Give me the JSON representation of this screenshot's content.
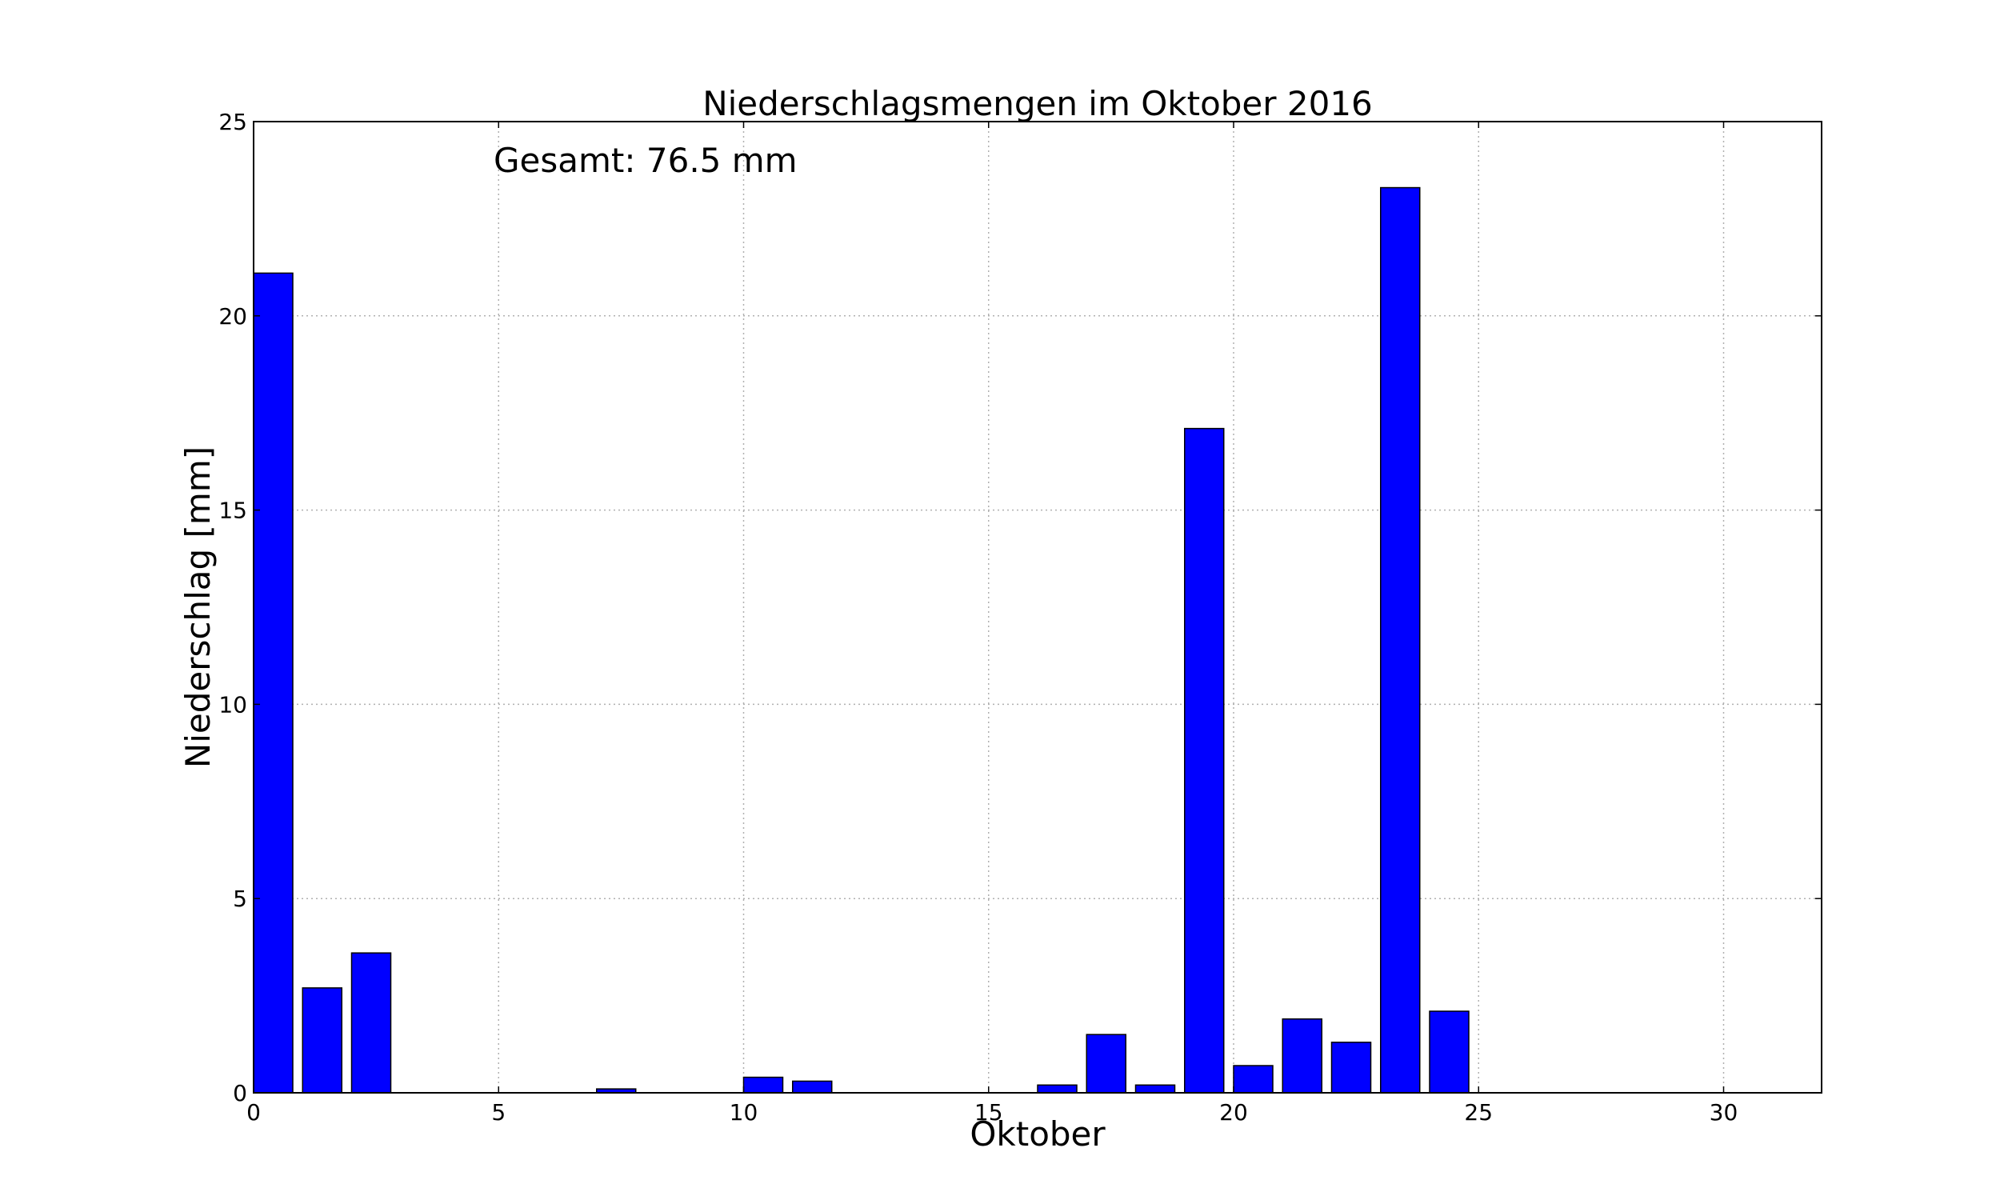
{
  "chart_data": {
    "type": "bar",
    "title": "Niederschlagsmengen im Oktober 2016",
    "xlabel": "Oktober",
    "ylabel": "Niederschlag [mm]",
    "annotation": "Gesamt: 76.5 mm",
    "xlim": [
      0,
      32
    ],
    "ylim": [
      0,
      25
    ],
    "x_ticks": [
      0,
      5,
      10,
      15,
      20,
      25,
      30
    ],
    "y_ticks": [
      0,
      5,
      10,
      15,
      20,
      25
    ],
    "grid": true,
    "bar_width": 0.8,
    "bar_color": "#0000ff",
    "x": [
      0,
      1,
      2,
      3,
      4,
      5,
      6,
      7,
      8,
      9,
      10,
      11,
      12,
      13,
      14,
      15,
      16,
      17,
      18,
      19,
      20,
      21,
      22,
      23,
      24,
      25,
      26,
      27,
      28,
      29,
      30
    ],
    "values": [
      21.1,
      2.7,
      3.6,
      0,
      0,
      0,
      0,
      0.1,
      0,
      0,
      0.4,
      0.3,
      0,
      0,
      0,
      0,
      0.2,
      1.5,
      0.2,
      17.1,
      0.7,
      1.9,
      1.3,
      23.3,
      2.1,
      0,
      0,
      0,
      0,
      0,
      0
    ]
  }
}
